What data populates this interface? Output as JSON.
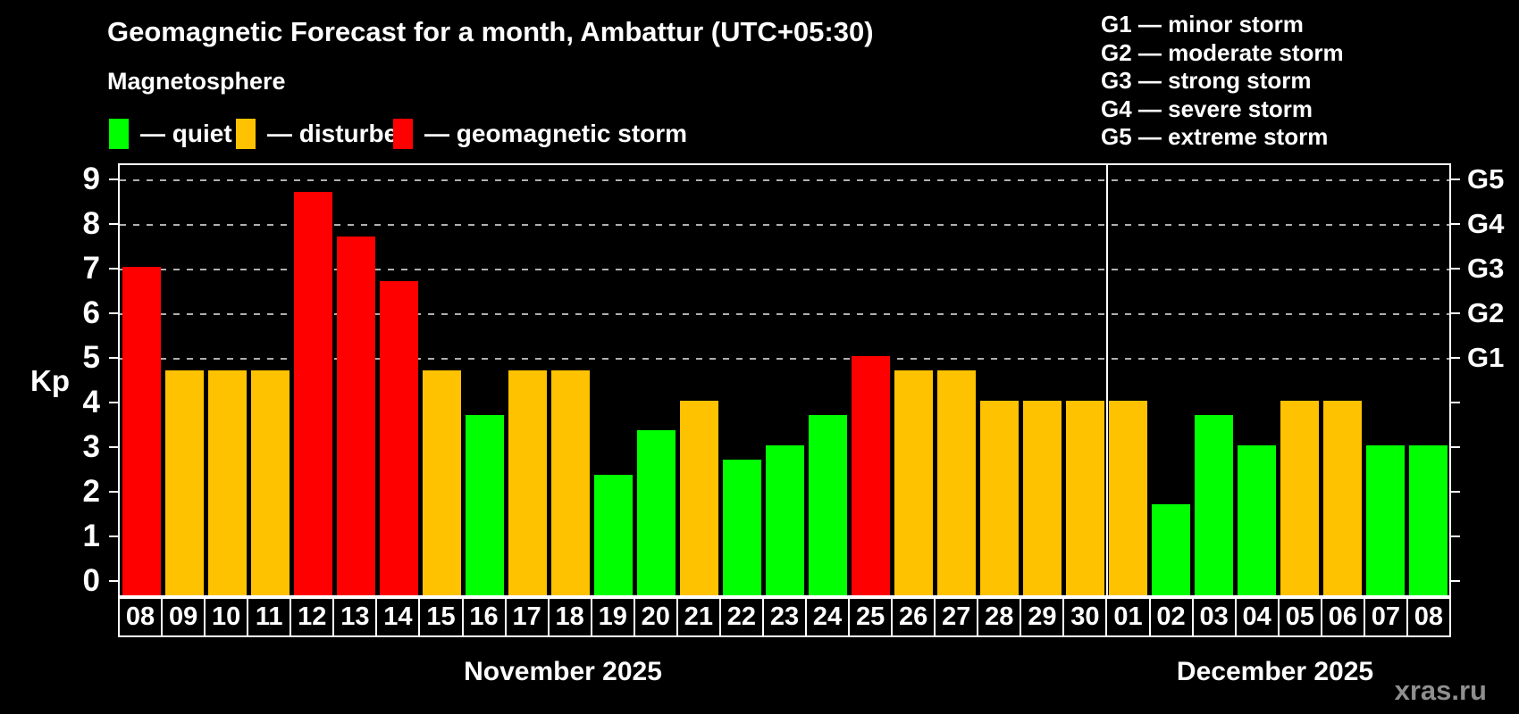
{
  "title": "Geomagnetic Forecast for a month, Ambattur (UTC+05:30)",
  "subtitle": "Magnetosphere",
  "legend": {
    "items": [
      {
        "key": "quiet",
        "label": "— quiet",
        "color": "#00ff00"
      },
      {
        "key": "disturbed",
        "label": "— disturbed",
        "color": "#ffc200"
      },
      {
        "key": "storm",
        "label": "— geomagnetic storm",
        "color": "#ff0000"
      }
    ]
  },
  "g_legend": [
    "G1 — minor storm",
    "G2 — moderate storm",
    "G3 — strong storm",
    "G4 — severe storm",
    "G5 — extreme storm"
  ],
  "watermark": "xras.ru",
  "colors": {
    "quiet": "#00ff00",
    "disturbed": "#ffc200",
    "storm": "#ff0000",
    "axis": "#ffffff",
    "grid": "#b0b0b0",
    "background": "#000000",
    "watermark": "#8f8f8f"
  },
  "chart_data": {
    "type": "bar",
    "ylabel": "Kp",
    "ylim": [
      -0.36,
      9.36
    ],
    "yticks": [
      0,
      1,
      2,
      3,
      4,
      5,
      6,
      7,
      8,
      9
    ],
    "gridlines_at": [
      5,
      6,
      7,
      8,
      9
    ],
    "grid_style": "dashed horizontal lines at storm levels G1–G5",
    "legend_position": "top-left and top-right",
    "right_axis_labels": [
      {
        "kp": 5,
        "label": "G1"
      },
      {
        "kp": 6,
        "label": "G2"
      },
      {
        "kp": 7,
        "label": "G3"
      },
      {
        "kp": 8,
        "label": "G4"
      },
      {
        "kp": 9,
        "label": "G5"
      }
    ],
    "months": [
      {
        "label": "November 2025",
        "days": 23
      },
      {
        "label": "December 2025",
        "days": 8
      }
    ],
    "bars": [
      {
        "day": "08",
        "month": "November 2025",
        "value": 7.0,
        "level": "storm"
      },
      {
        "day": "09",
        "month": "November 2025",
        "value": 4.67,
        "level": "disturbed"
      },
      {
        "day": "10",
        "month": "November 2025",
        "value": 4.67,
        "level": "disturbed"
      },
      {
        "day": "11",
        "month": "November 2025",
        "value": 4.67,
        "level": "disturbed"
      },
      {
        "day": "12",
        "month": "November 2025",
        "value": 8.67,
        "level": "storm"
      },
      {
        "day": "13",
        "month": "November 2025",
        "value": 7.67,
        "level": "storm"
      },
      {
        "day": "14",
        "month": "November 2025",
        "value": 6.67,
        "level": "storm"
      },
      {
        "day": "15",
        "month": "November 2025",
        "value": 4.67,
        "level": "disturbed"
      },
      {
        "day": "16",
        "month": "November 2025",
        "value": 3.67,
        "level": "quiet"
      },
      {
        "day": "17",
        "month": "November 2025",
        "value": 4.67,
        "level": "disturbed"
      },
      {
        "day": "18",
        "month": "November 2025",
        "value": 4.67,
        "level": "disturbed"
      },
      {
        "day": "19",
        "month": "November 2025",
        "value": 2.33,
        "level": "quiet"
      },
      {
        "day": "20",
        "month": "November 2025",
        "value": 3.33,
        "level": "quiet"
      },
      {
        "day": "21",
        "month": "November 2025",
        "value": 4.0,
        "level": "disturbed"
      },
      {
        "day": "22",
        "month": "November 2025",
        "value": 2.67,
        "level": "quiet"
      },
      {
        "day": "23",
        "month": "November 2025",
        "value": 3.0,
        "level": "quiet"
      },
      {
        "day": "24",
        "month": "November 2025",
        "value": 3.67,
        "level": "quiet"
      },
      {
        "day": "25",
        "month": "November 2025",
        "value": 5.0,
        "level": "storm"
      },
      {
        "day": "26",
        "month": "November 2025",
        "value": 4.67,
        "level": "disturbed"
      },
      {
        "day": "27",
        "month": "November 2025",
        "value": 4.67,
        "level": "disturbed"
      },
      {
        "day": "28",
        "month": "November 2025",
        "value": 4.0,
        "level": "disturbed"
      },
      {
        "day": "29",
        "month": "November 2025",
        "value": 4.0,
        "level": "disturbed"
      },
      {
        "day": "30",
        "month": "November 2025",
        "value": 4.0,
        "level": "disturbed"
      },
      {
        "day": "01",
        "month": "December 2025",
        "value": 4.0,
        "level": "disturbed"
      },
      {
        "day": "02",
        "month": "December 2025",
        "value": 1.67,
        "level": "quiet"
      },
      {
        "day": "03",
        "month": "December 2025",
        "value": 3.67,
        "level": "quiet"
      },
      {
        "day": "04",
        "month": "December 2025",
        "value": 3.0,
        "level": "quiet"
      },
      {
        "day": "05",
        "month": "December 2025",
        "value": 4.0,
        "level": "disturbed"
      },
      {
        "day": "06",
        "month": "December 2025",
        "value": 4.0,
        "level": "disturbed"
      },
      {
        "day": "07",
        "month": "December 2025",
        "value": 3.0,
        "level": "quiet"
      },
      {
        "day": "08",
        "month": "December 2025",
        "value": 3.0,
        "level": "quiet"
      }
    ]
  }
}
